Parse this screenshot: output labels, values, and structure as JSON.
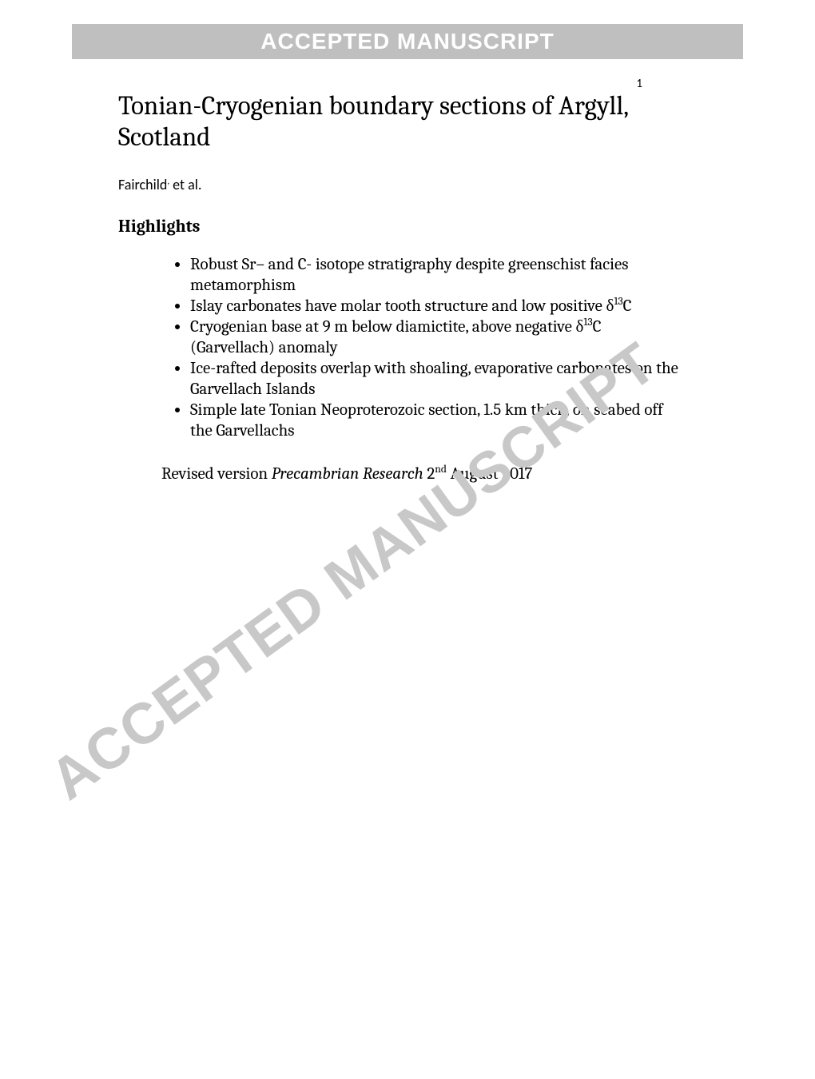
{
  "banner": {
    "text": "ACCEPTED MANUSCRIPT",
    "bg_color": "#bfbfbf",
    "text_color": "#ffffff"
  },
  "page_number": "1",
  "title": "Tonian-Cryogenian boundary sections of Argyll, Scotland",
  "authors_prefix": "Fairchild",
  "authors_sup": ",",
  "authors_suffix": " et al.",
  "highlights_header": "Highlights",
  "highlights": [
    {
      "pre": "Robust Sr– and C- isotope stratigraphy despite greenschist facies metamorphism"
    },
    {
      "pre": "Islay carbonates have molar tooth structure and low positive δ",
      "sup": "13",
      "post": "C"
    },
    {
      "pre": "Cryogenian base at 9 m below diamictite, above negative δ",
      "sup": "13",
      "post": "C (Garvellach) anomaly"
    },
    {
      "pre": "Ice-rafted deposits overlap with shoaling, evaporative carbonates on the Garvellach Islands"
    },
    {
      "pre": "Simple late Tonian Neoproterozoic section, 1.5 km thick, on seabed off the Garvellachs"
    }
  ],
  "revised": {
    "prefix": "Revised version  ",
    "journal": "Precambrian Research",
    "gap": " 2",
    "sup": "nd",
    "suffix": " August 2017"
  },
  "watermark": {
    "text": "ACCEPTED MANUSCRIPT",
    "color": "#c8c8c8"
  }
}
